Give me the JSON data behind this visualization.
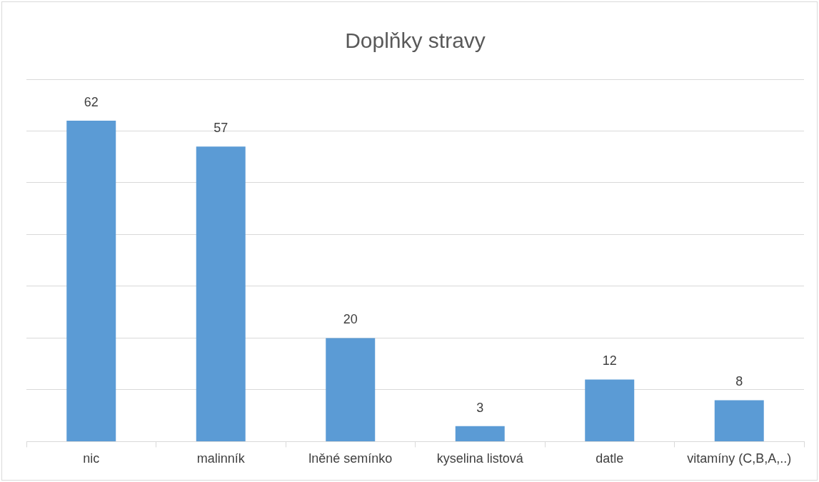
{
  "chart_data": {
    "type": "bar",
    "title": "Doplňky stravy",
    "categories": [
      "nic",
      "malinník",
      "lněné semínko",
      "kyselina listová",
      "datle",
      "vitamíny (C,B,A,..)"
    ],
    "values": [
      62,
      57,
      20,
      3,
      12,
      8
    ],
    "color": "#5b9bd5",
    "ylim": [
      0,
      70
    ],
    "yticks": [
      {
        "value": 0,
        "label": null
      },
      {
        "value": 10,
        "label": null
      },
      {
        "value": 20,
        "label": null
      },
      {
        "value": 30,
        "label": null
      },
      {
        "value": 40,
        "label": null
      },
      {
        "value": 50,
        "label": null
      },
      {
        "value": 60,
        "label": null
      },
      {
        "value": 70,
        "label": null
      }
    ],
    "tick_labels": "x",
    "grid": "y",
    "legend": false,
    "data_labels": true
  }
}
